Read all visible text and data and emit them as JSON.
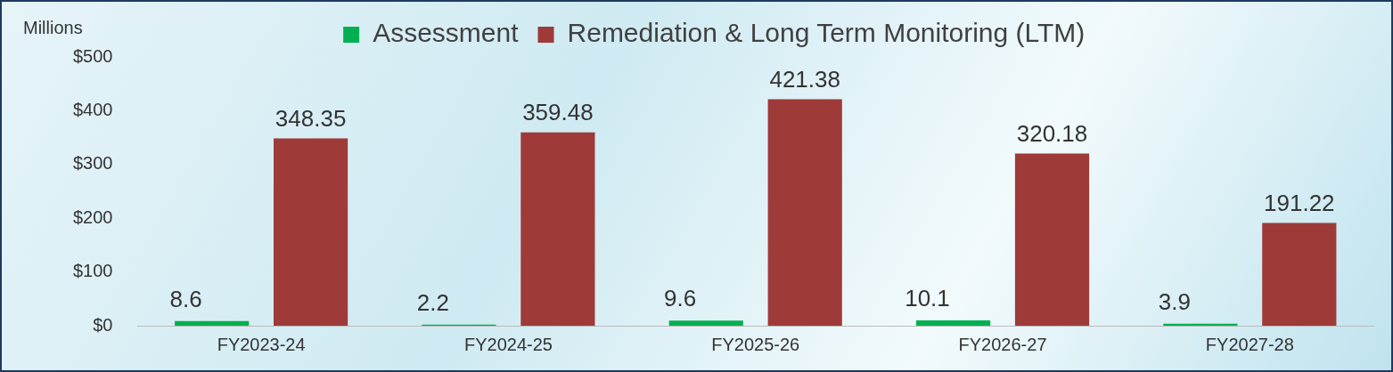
{
  "chart_data": {
    "type": "bar",
    "ylabel": "Millions",
    "categories": [
      "FY2023-24",
      "FY2024-25",
      "FY2025-26",
      "FY2026-27",
      "FY2027-28"
    ],
    "series": [
      {
        "name": "Assessment",
        "color": "#00b050",
        "values": [
          8.6,
          2.2,
          9.6,
          10.1,
          3.9
        ]
      },
      {
        "name": "Remediation & Long Term Monitoring (LTM)",
        "color": "#9e3a38",
        "values": [
          348.35,
          359.48,
          421.38,
          320.18,
          191.22
        ]
      }
    ],
    "ylim": [
      0,
      500
    ],
    "yticks": [
      {
        "value": 0,
        "label": "$0"
      },
      {
        "value": 100,
        "label": "$100"
      },
      {
        "value": 200,
        "label": "$200"
      },
      {
        "value": 300,
        "label": "$300"
      },
      {
        "value": 400,
        "label": "$400"
      },
      {
        "value": 500,
        "label": "$500"
      }
    ],
    "grid": false,
    "legend": "top",
    "data_labels": true
  }
}
